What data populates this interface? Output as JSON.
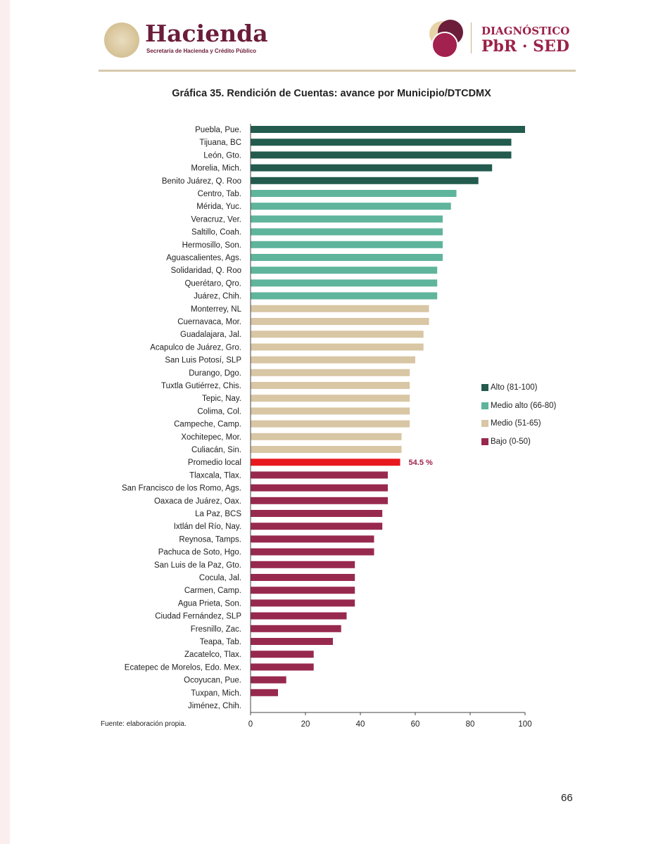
{
  "header": {
    "logo_left": "Hacienda",
    "logo_left_sub": "Secretaría de Hacienda y Crédito Público",
    "logo_right_line1": "DIAGNÓSTICO",
    "logo_right_line2": "PbR · SED"
  },
  "source": "Fuente: elaboración propia.",
  "page_number": "66",
  "chart_data": {
    "type": "bar",
    "orientation": "horizontal",
    "title": "Gráfica 35. Rendición de Cuentas: avance por Municipio/DTCDMX",
    "xlim": [
      0,
      100
    ],
    "xticks": [
      0,
      20,
      40,
      60,
      80,
      100
    ],
    "grid": false,
    "legend_position": "right",
    "legend": [
      {
        "key": "alto",
        "label": "Alto (81-100)",
        "color": "#235b4e"
      },
      {
        "key": "medio_alto",
        "label": "Medio alto (66-80)",
        "color": "#5fb49c"
      },
      {
        "key": "medio",
        "label": "Medio (51-65)",
        "color": "#d8c6a4"
      },
      {
        "key": "bajo",
        "label": "Bajo (0-50)",
        "color": "#98294e"
      }
    ],
    "highlight": {
      "category": "Promedio local",
      "color": "#e8191e",
      "label": "54.5 %",
      "label_color": "#9b2249"
    },
    "categories": [
      "Puebla, Pue.",
      "Tijuana, BC",
      "León, Gto.",
      "Morelia, Mich.",
      "Benito Juárez, Q. Roo",
      "Centro, Tab.",
      "Mérida, Yuc.",
      "Veracruz, Ver.",
      "Saltillo, Coah.",
      "Hermosillo, Son.",
      "Aguascalientes, Ags.",
      "Solidaridad, Q. Roo",
      "Querétaro, Qro.",
      "Juárez, Chih.",
      "Monterrey, NL",
      "Cuernavaca, Mor.",
      "Guadalajara, Jal.",
      "Acapulco de Juárez, Gro.",
      "San Luis Potosí, SLP",
      "Durango, Dgo.",
      "Tuxtla Gutiérrez, Chis.",
      "Tepic, Nay.",
      "Colima, Col.",
      "Campeche, Camp.",
      "Xochitepec, Mor.",
      "Culiacán, Sin.",
      "Promedio local",
      "Tlaxcala, Tlax.",
      "San Francisco de los Romo, Ags.",
      "Oaxaca de Juárez, Oax.",
      "La Paz, BCS",
      "Ixtlán del Río, Nay.",
      "Reynosa, Tamps.",
      "Pachuca de Soto, Hgo.",
      "San Luis de la Paz, Gto.",
      "Cocula, Jal.",
      "Carmen, Camp.",
      "Agua Prieta, Son.",
      "Ciudad Fernández, SLP",
      "Fresnillo, Zac.",
      "Teapa, Tab.",
      "Zacatelco, Tlax.",
      "Ecatepec de Morelos, Edo. Mex.",
      "Ocoyucan, Pue.",
      "Tuxpan, Mich.",
      "Jiménez, Chih."
    ],
    "values": [
      100,
      95,
      95,
      88,
      83,
      75,
      73,
      70,
      70,
      70,
      70,
      68,
      68,
      68,
      65,
      65,
      63,
      63,
      60,
      58,
      58,
      58,
      58,
      58,
      55,
      55,
      54.5,
      50,
      50,
      50,
      48,
      48,
      45,
      45,
      38,
      38,
      38,
      38,
      35,
      33,
      30,
      23,
      23,
      13,
      10,
      0
    ]
  }
}
